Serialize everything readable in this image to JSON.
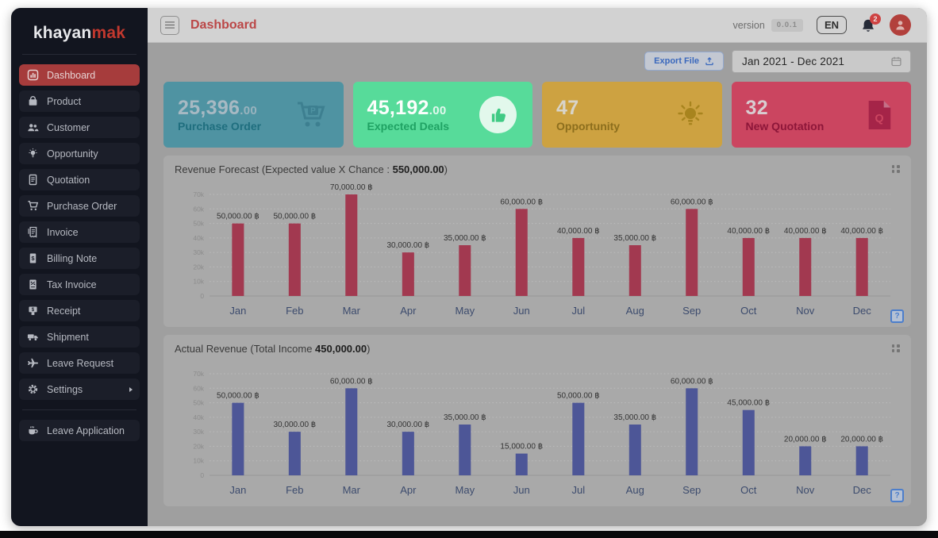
{
  "sidebar": {
    "logo_part1": "khayan",
    "logo_part2": "mak",
    "items": [
      {
        "label": "Dashboard",
        "icon": "bar-chart-icon",
        "active": true
      },
      {
        "label": "Product",
        "icon": "bag-icon"
      },
      {
        "label": "Customer",
        "icon": "users-icon"
      },
      {
        "label": "Opportunity",
        "icon": "lightbulb-icon"
      },
      {
        "label": "Quotation",
        "icon": "document-icon"
      },
      {
        "label": "Purchase Order",
        "icon": "cart-icon"
      },
      {
        "label": "Invoice",
        "icon": "invoice-icon"
      },
      {
        "label": "Billing Note",
        "icon": "billing-note-icon"
      },
      {
        "label": "Tax Invoice",
        "icon": "tax-invoice-icon"
      },
      {
        "label": "Receipt",
        "icon": "receipt-icon"
      },
      {
        "label": "Shipment",
        "icon": "truck-icon"
      },
      {
        "label": "Leave Request",
        "icon": "plane-icon"
      },
      {
        "label": "Settings",
        "icon": "gear-icon",
        "has_submenu": true
      }
    ],
    "footer_items": [
      {
        "label": "Leave Application",
        "icon": "coffee-icon"
      }
    ]
  },
  "topbar": {
    "title": "Dashboard",
    "version_label": "version",
    "version_value": "0.0.1",
    "language": "EN",
    "notification_count": "2"
  },
  "toolbar": {
    "export_label": "Export File",
    "date_range": "Jan 2021 - Dec 2021"
  },
  "stat_cards": [
    {
      "value": "25,396",
      "decimals": ".00",
      "label": "Purchase Order",
      "icon": "cart-p-icon",
      "bg": "#4f93a2",
      "value_color": "#a7b9c3",
      "label_color": "#1f6e7e",
      "icon_color": "#3d7f90"
    },
    {
      "value": "45,192",
      "decimals": ".00",
      "label": "Expected Deals",
      "icon": "thumbs-up-icon",
      "bg": "#57db9a",
      "value_color": "#fbfefc",
      "label_color": "#1fa263",
      "icon_color": "#3fca84"
    },
    {
      "value": "47",
      "decimals": "",
      "label": "Opportunity",
      "icon": "bulb-icon",
      "bg": "#cda241",
      "value_color": "#d8d4ca",
      "label_color": "#8c6e1d",
      "icon_color": "#a8841e"
    },
    {
      "value": "32",
      "decimals": "",
      "label": "New Quotation",
      "icon": "quotation-doc-icon",
      "bg": "#cb4560",
      "value_color": "#d8cdd1",
      "label_color": "#8d1639",
      "icon_color": "#a52448"
    }
  ],
  "chart_ui": {
    "help_glyph": "?"
  },
  "chart_data": [
    {
      "type": "bar",
      "title_prefix": "Revenue Forecast (Expected value X Chance : ",
      "title_value": "550,000.00",
      "title_suffix": ")",
      "categories": [
        "Jan",
        "Feb",
        "Mar",
        "Apr",
        "May",
        "Jun",
        "Jul",
        "Aug",
        "Sep",
        "Oct",
        "Nov",
        "Dec"
      ],
      "values": [
        50000,
        50000,
        70000,
        30000,
        35000,
        60000,
        40000,
        35000,
        60000,
        40000,
        40000,
        40000
      ],
      "point_labels": [
        "50,000.00 ฿",
        "50,000.00 ฿",
        "70,000.00 ฿",
        "30,000.00 ฿",
        "35,000.00 ฿",
        "60,000.00 ฿",
        "40,000.00 ฿",
        "35,000.00 ฿",
        "60,000.00 ฿",
        "40,000.00 ฿",
        "40,000.00 ฿",
        "40,000.00 ฿"
      ],
      "ytick_labels": [
        "0",
        "10k",
        "20k",
        "30k",
        "40k",
        "50k",
        "60k",
        "70k"
      ],
      "ylim": [
        0,
        70000
      ],
      "bar_color": "#a23950",
      "grid": true,
      "legend": "none"
    },
    {
      "type": "bar",
      "title_prefix": "Actual Revenue (Total Income ",
      "title_value": "450,000.00",
      "title_suffix": ")",
      "categories": [
        "Jan",
        "Feb",
        "Mar",
        "Apr",
        "May",
        "Jun",
        "Jul",
        "Aug",
        "Sep",
        "Oct",
        "Nov",
        "Dec"
      ],
      "values": [
        50000,
        30000,
        60000,
        30000,
        35000,
        15000,
        50000,
        35000,
        60000,
        45000,
        20000,
        20000
      ],
      "point_labels": [
        "50,000.00 ฿",
        "30,000.00 ฿",
        "60,000.00 ฿",
        "30,000.00 ฿",
        "35,000.00 ฿",
        "15,000.00 ฿",
        "50,000.00 ฿",
        "35,000.00 ฿",
        "60,000.00 ฿",
        "45,000.00 ฿",
        "20,000.00 ฿",
        "20,000.00 ฿"
      ],
      "ytick_labels": [
        "0",
        "10k",
        "20k",
        "30k",
        "40k",
        "50k",
        "60k",
        "70k"
      ],
      "ylim": [
        0,
        70000
      ],
      "bar_color": "#4d5697",
      "grid": true,
      "legend": "none"
    }
  ],
  "colors": {
    "brand_red": "#c2382e",
    "sidebar_active": "#a63c3c",
    "title_red": "#bb4747",
    "export_blue": "#3a68bd"
  }
}
